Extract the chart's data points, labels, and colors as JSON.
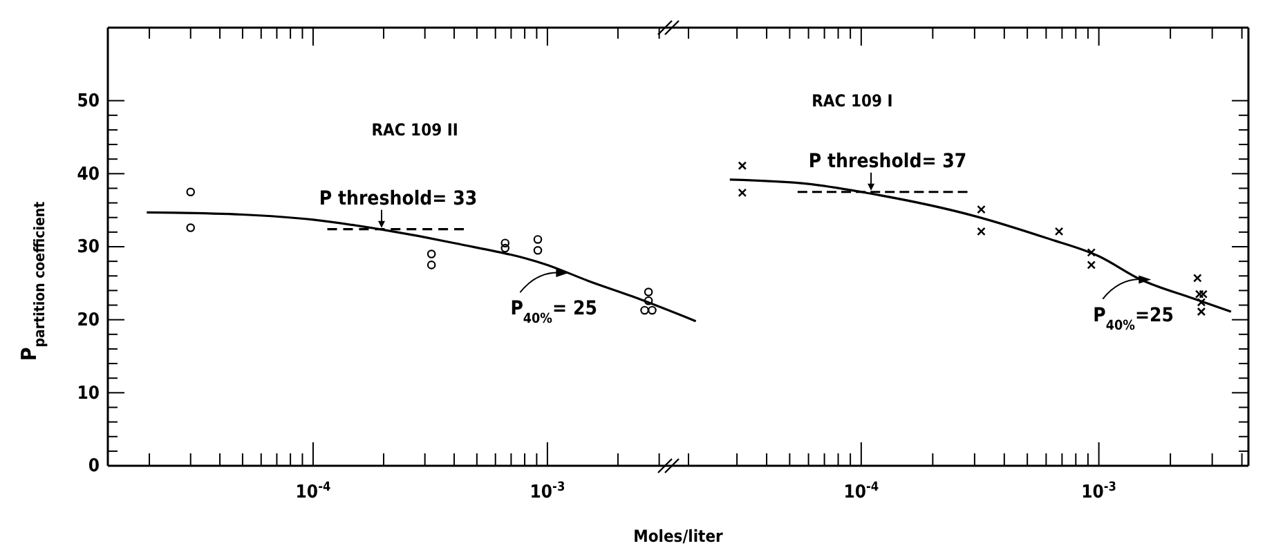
{
  "chart_data": [
    {
      "type": "scatter",
      "xlabel": "Moles/liter",
      "ylabel": "P$_{partition coefficient}$",
      "log": "x",
      "grid": false,
      "xlim": [
        1.33e-05,
        0.0044
      ],
      "xticks": [
        {
          "value": 2e-05,
          "label": null
        },
        {
          "value": 3e-05,
          "label": null
        },
        {
          "value": 4e-05,
          "label": null
        },
        {
          "value": 5e-05,
          "label": null
        },
        {
          "value": 6e-05,
          "label": null
        },
        {
          "value": 7e-05,
          "label": null
        },
        {
          "value": 8e-05,
          "label": null
        },
        {
          "value": 9e-05,
          "label": null
        },
        {
          "value": 0.0001,
          "label": "10$^{-4}$"
        },
        {
          "value": 0.0002,
          "label": null
        },
        {
          "value": 0.0003,
          "label": null
        },
        {
          "value": 0.0004,
          "label": null
        },
        {
          "value": 0.0005,
          "label": null
        },
        {
          "value": 0.0006,
          "label": null
        },
        {
          "value": 0.0007,
          "label": null
        },
        {
          "value": 0.0008,
          "label": null
        },
        {
          "value": 0.0009,
          "label": null
        },
        {
          "value": 0.001,
          "label": "10$^{-3}$"
        },
        {
          "value": 0.002,
          "label": null
        },
        {
          "value": 0.003,
          "label": null
        },
        {
          "value": 0.004,
          "label": null
        }
      ],
      "ylim": [
        0,
        60
      ],
      "yticks": [
        0,
        {
          "value": 2,
          "label": null
        },
        {
          "value": 4,
          "label": null
        },
        {
          "value": 6,
          "label": null
        },
        {
          "value": 8,
          "label": null
        },
        10,
        {
          "value": 12,
          "label": null
        },
        {
          "value": 14,
          "label": null
        },
        {
          "value": 16,
          "label": null
        },
        {
          "value": 18,
          "label": null
        },
        20,
        {
          "value": 22,
          "label": null
        },
        {
          "value": 24,
          "label": null
        },
        {
          "value": 26,
          "label": null
        },
        {
          "value": 28,
          "label": null
        },
        30,
        {
          "value": 32,
          "label": null
        },
        {
          "value": 34,
          "label": null
        },
        {
          "value": 36,
          "label": null
        },
        {
          "value": 38,
          "label": null
        },
        40,
        {
          "value": 42,
          "label": null
        },
        {
          "value": 44,
          "label": null
        },
        {
          "value": 46,
          "label": null
        },
        {
          "value": 48,
          "label": null
        },
        50
      ],
      "series": [
        {
          "type": "scatter",
          "marker": "circle",
          "color": "#000000",
          "x": [
            3e-05,
            3e-05,
            0.00032,
            0.00032,
            0.00066,
            0.00066,
            0.00091,
            0.00091,
            0.0027,
            0.0027,
            0.0026,
            0.0028
          ],
          "values": [
            37.5,
            32.6,
            29,
            27.5,
            30.5,
            29.8,
            31,
            29.5,
            23.8,
            22.6,
            21.3,
            21.3
          ]
        },
        {
          "type": "line",
          "marker": "none",
          "line_style": "solid",
          "color": "#000000",
          "x": [
            1.95e-05,
            5e-05,
            0.0001,
            0.0002,
            0.0004,
            0.001,
            0.0015,
            0.0023,
            0.0043
          ],
          "values": [
            34.7,
            34.4,
            33.7,
            32.3,
            30.5,
            27.5,
            25.3,
            23.2,
            19.8
          ]
        },
        {
          "type": "line",
          "marker": "none",
          "line_style": "dashed",
          "color": "#000000",
          "x": [
            0.000115,
            0.00044
          ],
          "values": [
            32.4,
            32.4
          ]
        }
      ],
      "annotations": [
        "RAC 109 II",
        {
          "text": "P threshold= 33",
          "x": 0.000196,
          "y": 32.4
        },
        {
          "text": "P$_{40%}$= 25",
          "x": 0.00123,
          "y": 26.4
        }
      ]
    },
    {
      "type": "scatter",
      "log": "x",
      "grid": false,
      "tick_labels": "x",
      "xlim": [
        2.06e-05,
        0.00426
      ],
      "xticks": [
        {
          "value": 3e-05,
          "label": null
        },
        {
          "value": 4e-05,
          "label": null
        },
        {
          "value": 5e-05,
          "label": null
        },
        {
          "value": 6e-05,
          "label": null
        },
        {
          "value": 7e-05,
          "label": null
        },
        {
          "value": 8e-05,
          "label": null
        },
        {
          "value": 9e-05,
          "label": null
        },
        {
          "value": 0.0001,
          "label": "10$^{-4}$"
        },
        {
          "value": 0.0002,
          "label": null
        },
        {
          "value": 0.0003,
          "label": null
        },
        {
          "value": 0.0004,
          "label": null
        },
        {
          "value": 0.0005,
          "label": null
        },
        {
          "value": 0.0006,
          "label": null
        },
        {
          "value": 0.0007,
          "label": null
        },
        {
          "value": 0.0008,
          "label": null
        },
        {
          "value": 0.0009,
          "label": null
        },
        {
          "value": 0.001,
          "label": "10$^{-3}$"
        },
        {
          "value": 0.002,
          "label": null
        },
        {
          "value": 0.003,
          "label": null
        },
        {
          "value": 0.004,
          "label": null
        }
      ],
      "ylim": [
        0,
        60
      ],
      "yticks": [
        0,
        {
          "value": 2,
          "label": null
        },
        {
          "value": 4,
          "label": null
        },
        {
          "value": 6,
          "label": null
        },
        {
          "value": 8,
          "label": null
        },
        10,
        {
          "value": 12,
          "label": null
        },
        {
          "value": 14,
          "label": null
        },
        {
          "value": 16,
          "label": null
        },
        {
          "value": 18,
          "label": null
        },
        20,
        {
          "value": 22,
          "label": null
        },
        {
          "value": 24,
          "label": null
        },
        {
          "value": 26,
          "label": null
        },
        {
          "value": 28,
          "label": null
        },
        30,
        {
          "value": 32,
          "label": null
        },
        {
          "value": 34,
          "label": null
        },
        {
          "value": 36,
          "label": null
        },
        {
          "value": 38,
          "label": null
        },
        40,
        {
          "value": 42,
          "label": null
        },
        {
          "value": 44,
          "label": null
        },
        {
          "value": 46,
          "label": null
        },
        {
          "value": 48,
          "label": null
        },
        50
      ],
      "series": [
        {
          "type": "scatter",
          "marker": "cross",
          "color": "#000000",
          "x": [
            3.16e-05,
            3.16e-05,
            0.00032,
            0.00032,
            0.00068,
            0.00093,
            0.00093,
            0.0026,
            0.00265,
            0.00275,
            0.0027,
            0.0027
          ],
          "values": [
            41.1,
            37.4,
            35.1,
            32.1,
            32.1,
            29.2,
            27.5,
            25.7,
            23.5,
            23.5,
            22.4,
            21.1
          ]
        },
        {
          "type": "line",
          "marker": "none",
          "line_style": "solid",
          "color": "#000000",
          "x": [
            2.8e-05,
            6e-05,
            0.0001,
            0.0003,
            0.0006,
            0.001,
            0.0015,
            0.0025,
            0.0036
          ],
          "values": [
            39.2,
            38.6,
            37.5,
            34.2,
            31.2,
            28.7,
            25.5,
            22.9,
            21.1
          ]
        },
        {
          "type": "line",
          "marker": "none",
          "line_style": "dashed",
          "color": "#000000",
          "x": [
            5.4e-05,
            0.00028
          ],
          "values": [
            37.5,
            37.5
          ]
        }
      ],
      "annotations": [
        "RAC 109 I",
        {
          "text": "P threshold= 37",
          "x": 0.00011,
          "y": 37.5
        },
        {
          "text": "P$_{40%}$=25",
          "x": 0.00166,
          "y": 25.5
        }
      ]
    }
  ]
}
